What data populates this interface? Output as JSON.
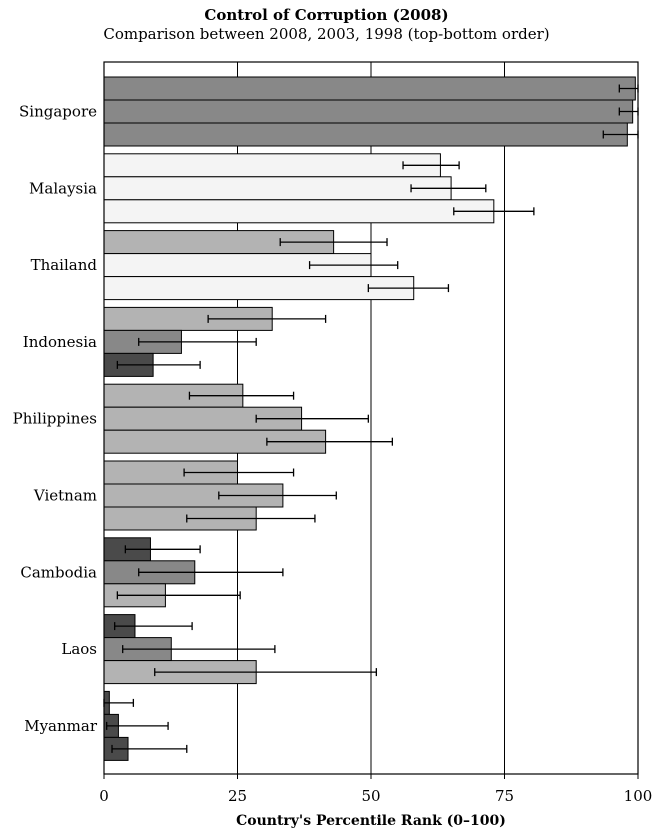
{
  "chart_data": {
    "type": "bar",
    "orientation": "horizontal",
    "title": "Control of Corruption (2008)",
    "subtitle": "Comparison between 2008, 2003, 1998 (top-bottom order)",
    "xlabel": "Country's Percentile Rank (0–100)",
    "ylabel": "",
    "xlim": [
      0,
      100
    ],
    "xticks": [
      0,
      25,
      50,
      75,
      100
    ],
    "grid": "vertical",
    "categories": [
      "Singapore",
      "Malaysia",
      "Thailand",
      "Indonesia",
      "Philippines",
      "Vietnam",
      "Cambodia",
      "Laos",
      "Myanmar"
    ],
    "bar_order_within_group": [
      "2008",
      "2003",
      "1998"
    ],
    "values": [
      [
        99.5,
        99,
        98
      ],
      [
        63,
        65,
        73
      ],
      [
        43,
        50,
        58
      ],
      [
        31.5,
        14.5,
        9.2
      ],
      [
        26,
        37,
        41.5
      ],
      [
        25,
        33.5,
        28.5
      ],
      [
        8.7,
        17,
        11.5
      ],
      [
        5.8,
        12.6,
        28.5
      ],
      [
        1,
        2.7,
        4.5
      ]
    ],
    "error_ranges": [
      [
        [
          96.5,
          100
        ],
        [
          96.5,
          100
        ],
        [
          93.5,
          100
        ]
      ],
      [
        [
          56,
          66.5
        ],
        [
          57.5,
          71.5
        ],
        [
          65.5,
          80.5
        ]
      ],
      [
        [
          33,
          53
        ],
        [
          38.5,
          55
        ],
        [
          49.5,
          64.5
        ]
      ],
      [
        [
          19.5,
          41.5
        ],
        [
          6.5,
          28.5
        ],
        [
          2.5,
          18
        ]
      ],
      [
        [
          16,
          35.5
        ],
        [
          28.5,
          49.5
        ],
        [
          30.5,
          54
        ]
      ],
      [
        [
          15,
          35.5
        ],
        [
          21.5,
          43.5
        ],
        [
          15.5,
          39.5
        ]
      ],
      [
        [
          4,
          18
        ],
        [
          6.5,
          33.5
        ],
        [
          2.5,
          25.5
        ]
      ],
      [
        [
          2,
          16.5
        ],
        [
          3.5,
          32
        ],
        [
          9.5,
          51
        ]
      ],
      [
        [
          0,
          5.5
        ],
        [
          0.5,
          12
        ],
        [
          1.5,
          15.5
        ]
      ]
    ],
    "bar_fills": [
      [
        "#888888",
        "#888888",
        "#888888"
      ],
      [
        "#f4f4f4",
        "#f4f4f4",
        "#f4f4f4"
      ],
      [
        "#b3b3b3",
        "#f4f4f4",
        "#f4f4f4"
      ],
      [
        "#b3b3b3",
        "#888888",
        "#4a4a4a"
      ],
      [
        "#b3b3b3",
        "#b3b3b3",
        "#b3b3b3"
      ],
      [
        "#b3b3b3",
        "#b3b3b3",
        "#b3b3b3"
      ],
      [
        "#4a4a4a",
        "#888888",
        "#b3b3b3"
      ],
      [
        "#4a4a4a",
        "#888888",
        "#b3b3b3"
      ],
      [
        "#4a4a4a",
        "#4a4a4a",
        "#4a4a4a"
      ]
    ]
  }
}
